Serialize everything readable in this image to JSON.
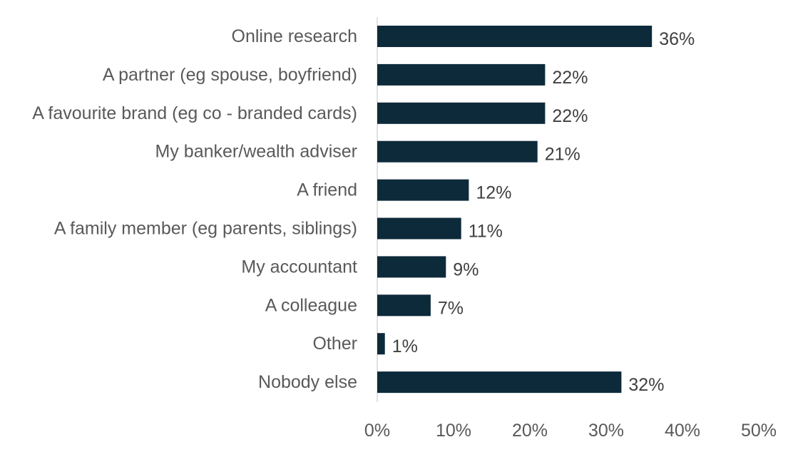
{
  "chart_data": {
    "type": "bar",
    "orientation": "horizontal",
    "categories": [
      "Online research",
      "A partner (eg spouse, boyfriend)",
      "A favourite brand (eg co - branded cards)",
      "My banker/wealth adviser",
      "A friend",
      "A family member (eg parents, siblings)",
      "My accountant",
      "A colleague",
      "Other",
      "Nobody else"
    ],
    "values": [
      36,
      22,
      22,
      21,
      12,
      11,
      9,
      7,
      1,
      32
    ],
    "data_labels": [
      "36%",
      "22%",
      "22%",
      "21%",
      "12%",
      "11%",
      "9%",
      "7%",
      "1%",
      "32%"
    ],
    "xlim": [
      0,
      50
    ],
    "x_ticks": [
      0,
      10,
      20,
      30,
      40,
      50
    ],
    "x_tick_labels": [
      "0%",
      "10%",
      "20%",
      "30%",
      "40%",
      "50%"
    ],
    "bar_color": "#0d2a3a",
    "axis_color": "#d9d9d9",
    "grid": false,
    "legend": "none"
  }
}
